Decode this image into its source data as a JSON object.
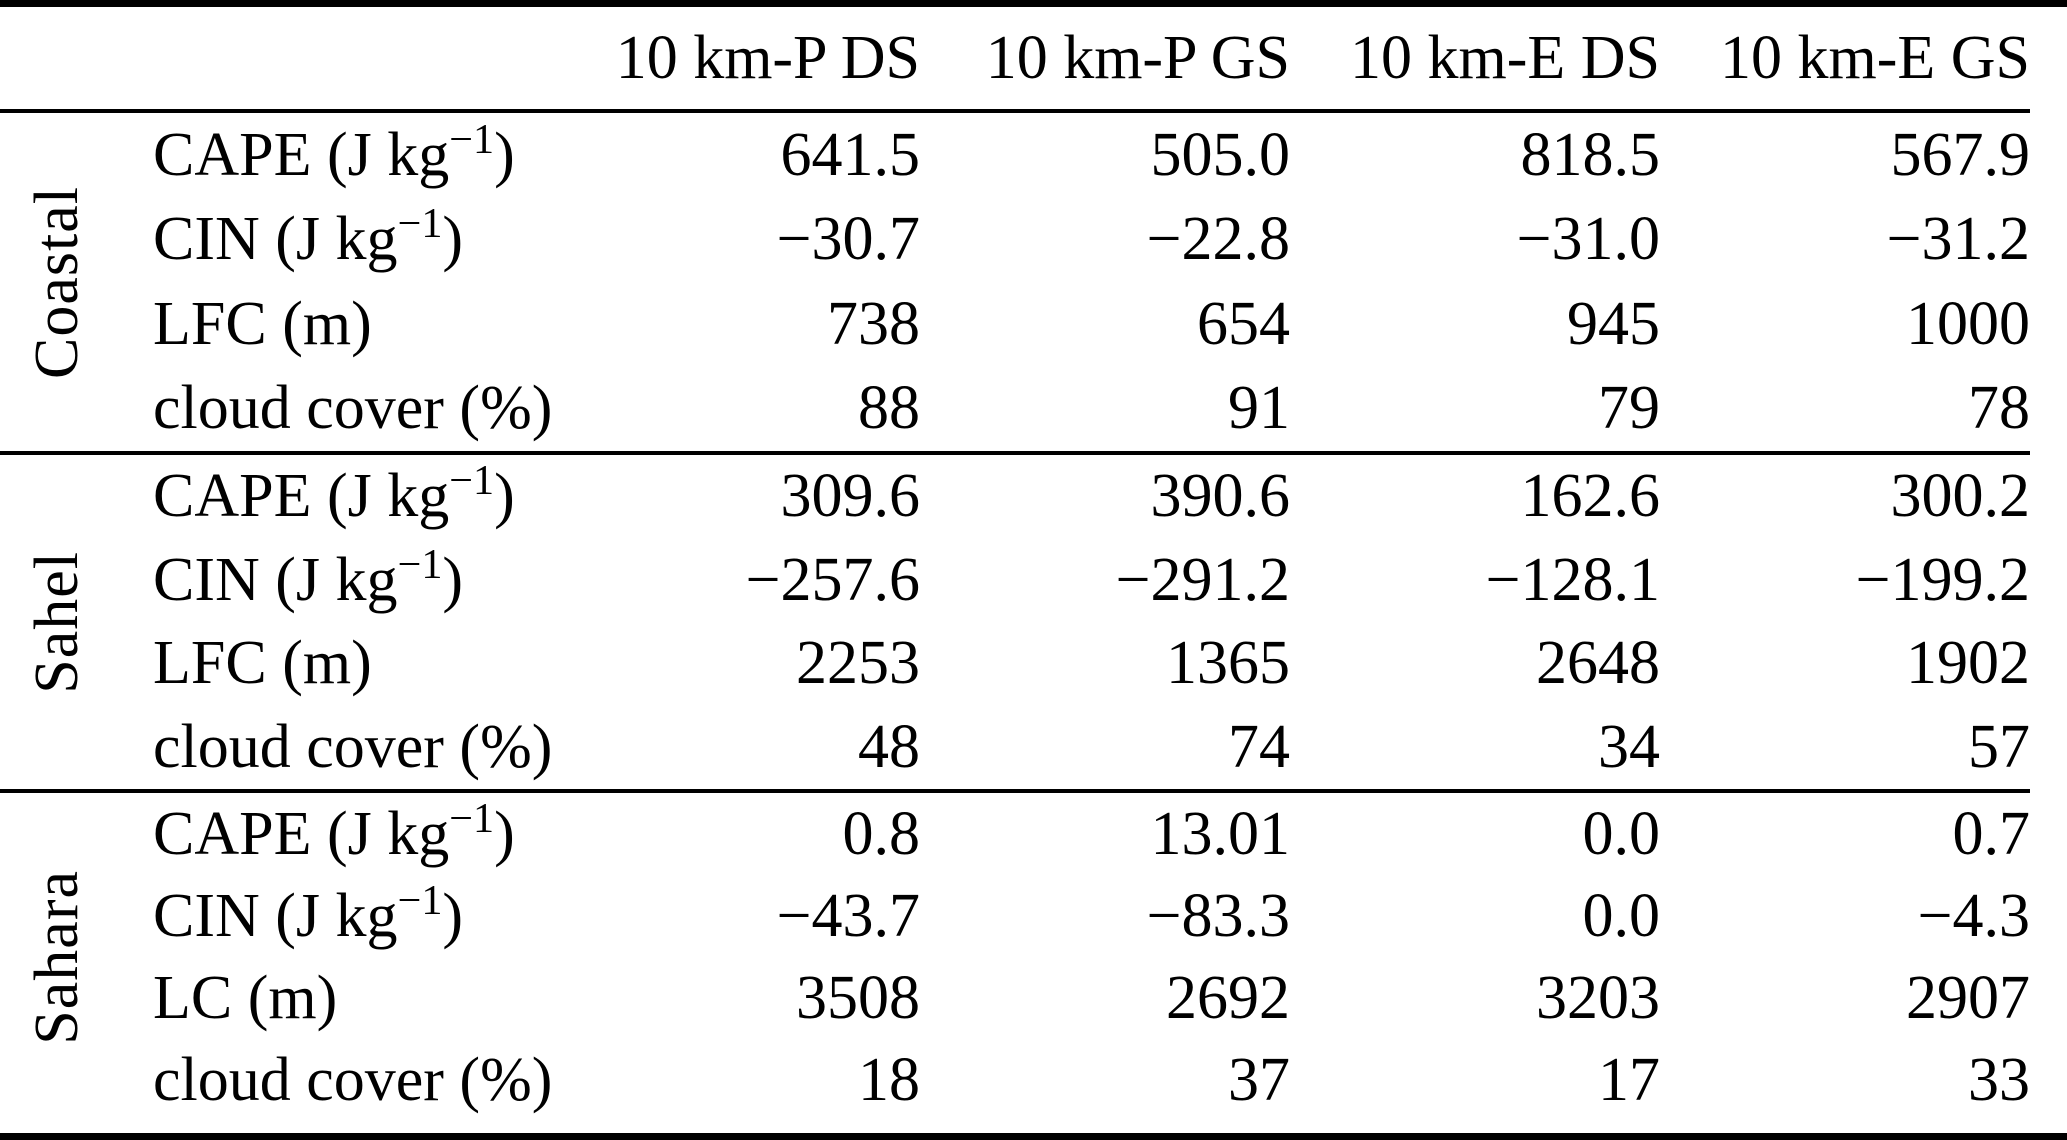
{
  "table": {
    "columns": [
      "10 km-P DS",
      "10 km-P GS",
      "10 km-E DS",
      "10 km-E GS"
    ],
    "sections": [
      {
        "region": "Coastal",
        "rows": [
          {
            "label_prefix": "CAPE (J kg",
            "label_sup": "−1",
            "label_suffix": ")",
            "values": [
              "641.5",
              "505.0",
              "818.5",
              "567.9"
            ]
          },
          {
            "label_prefix": "CIN (J kg",
            "label_sup": "−1",
            "label_suffix": ")",
            "values": [
              "−30.7",
              "−22.8",
              "−31.0",
              "−31.2"
            ]
          },
          {
            "label_prefix": "LFC (m)",
            "label_sup": "",
            "label_suffix": "",
            "values": [
              "738",
              "654",
              "945",
              "1000"
            ]
          },
          {
            "label_prefix": "cloud cover (%)",
            "label_sup": "",
            "label_suffix": "",
            "values": [
              "88",
              "91",
              "79",
              "78"
            ]
          }
        ]
      },
      {
        "region": "Sahel",
        "rows": [
          {
            "label_prefix": "CAPE (J kg",
            "label_sup": "−1",
            "label_suffix": ")",
            "values": [
              "309.6",
              "390.6",
              "162.6",
              "300.2"
            ]
          },
          {
            "label_prefix": "CIN (J kg",
            "label_sup": "−1",
            "label_suffix": ")",
            "values": [
              "−257.6",
              "−291.2",
              "−128.1",
              "−199.2"
            ]
          },
          {
            "label_prefix": "LFC (m)",
            "label_sup": "",
            "label_suffix": "",
            "values": [
              "2253",
              "1365",
              "2648",
              "1902"
            ]
          },
          {
            "label_prefix": "cloud cover (%)",
            "label_sup": "",
            "label_suffix": "",
            "values": [
              "48",
              "74",
              "34",
              "57"
            ]
          }
        ]
      },
      {
        "region": "Sahara",
        "rows": [
          {
            "label_prefix": "CAPE (J kg",
            "label_sup": "−1",
            "label_suffix": ")",
            "values": [
              "0.8",
              "13.01",
              "0.0",
              "0.7"
            ]
          },
          {
            "label_prefix": "CIN (J kg",
            "label_sup": "−1",
            "label_suffix": ")",
            "values": [
              "−43.7",
              "−83.3",
              "0.0",
              "−4.3"
            ]
          },
          {
            "label_prefix": "LC (m)",
            "label_sup": "",
            "label_suffix": "",
            "values": [
              "3508",
              "2692",
              "3203",
              "2907"
            ]
          },
          {
            "label_prefix": "cloud cover (%)",
            "label_sup": "",
            "label_suffix": "",
            "values": [
              "18",
              "37",
              "17",
              "33"
            ]
          }
        ]
      }
    ]
  }
}
